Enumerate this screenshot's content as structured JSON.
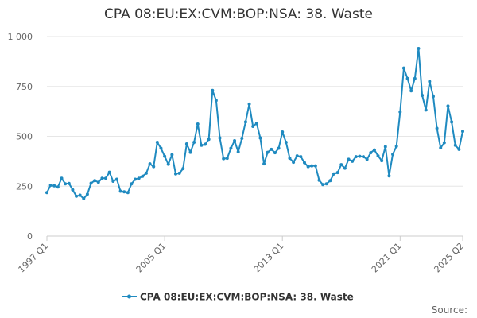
{
  "chart_data": {
    "type": "line",
    "title": "CPA 08:EU:EX:CVM:BOP:NSA: 38. Waste",
    "xlabel": "",
    "ylabel": "",
    "ylim": [
      0,
      1000
    ],
    "y_ticks": [
      0,
      250,
      500,
      750,
      1000
    ],
    "y_tick_labels": [
      "0",
      "250",
      "500",
      "750",
      "1 000"
    ],
    "x_tick_labels": [
      "1997 Q1",
      "2005 Q1",
      "2013 Q1",
      "2021 Q1",
      "2025 Q2"
    ],
    "grid": true,
    "legend_position": "bottom",
    "color": "#1f8ac0",
    "series": [
      {
        "name": "CPA 08:EU:EX:CVM:BOP:NSA: 38. Waste",
        "x": [
          "1997 Q1",
          "1997 Q2",
          "1997 Q3",
          "1997 Q4",
          "1998 Q1",
          "1998 Q2",
          "1998 Q3",
          "1998 Q4",
          "1999 Q1",
          "1999 Q2",
          "1999 Q3",
          "1999 Q4",
          "2000 Q1",
          "2000 Q2",
          "2000 Q3",
          "2000 Q4",
          "2001 Q1",
          "2001 Q2",
          "2001 Q3",
          "2001 Q4",
          "2002 Q1",
          "2002 Q2",
          "2002 Q3",
          "2002 Q4",
          "2003 Q1",
          "2003 Q2",
          "2003 Q3",
          "2003 Q4",
          "2004 Q1",
          "2004 Q2",
          "2004 Q3",
          "2004 Q4",
          "2005 Q1",
          "2005 Q2",
          "2005 Q3",
          "2005 Q4",
          "2006 Q1",
          "2006 Q2",
          "2006 Q3",
          "2006 Q4",
          "2007 Q1",
          "2007 Q2",
          "2007 Q3",
          "2007 Q4",
          "2008 Q1",
          "2008 Q2",
          "2008 Q3",
          "2008 Q4",
          "2009 Q1",
          "2009 Q2",
          "2009 Q3",
          "2009 Q4",
          "2010 Q1",
          "2010 Q2",
          "2010 Q3",
          "2010 Q4",
          "2011 Q1",
          "2011 Q2",
          "2011 Q3",
          "2011 Q4",
          "2012 Q1",
          "2012 Q2",
          "2012 Q3",
          "2012 Q4",
          "2013 Q1",
          "2013 Q2",
          "2013 Q3",
          "2013 Q4",
          "2014 Q1",
          "2014 Q2",
          "2014 Q3",
          "2014 Q4",
          "2015 Q1",
          "2015 Q2",
          "2015 Q3",
          "2015 Q4",
          "2016 Q1",
          "2016 Q2",
          "2016 Q3",
          "2016 Q4",
          "2017 Q1",
          "2017 Q2",
          "2017 Q3",
          "2017 Q4",
          "2018 Q1",
          "2018 Q2",
          "2018 Q3",
          "2018 Q4",
          "2019 Q1",
          "2019 Q2",
          "2019 Q3",
          "2019 Q4",
          "2020 Q1",
          "2020 Q2",
          "2020 Q3",
          "2020 Q4",
          "2021 Q1",
          "2021 Q2",
          "2021 Q3",
          "2021 Q4",
          "2022 Q1",
          "2022 Q2",
          "2022 Q3",
          "2022 Q4",
          "2023 Q1",
          "2023 Q2",
          "2023 Q3",
          "2023 Q4",
          "2024 Q1",
          "2024 Q2",
          "2024 Q3",
          "2024 Q4",
          "2025 Q1",
          "2025 Q2"
        ],
        "values": [
          218,
          255,
          252,
          246,
          290,
          262,
          264,
          232,
          200,
          205,
          188,
          210,
          265,
          278,
          270,
          290,
          290,
          320,
          275,
          285,
          225,
          222,
          218,
          262,
          285,
          290,
          300,
          315,
          362,
          348,
          470,
          440,
          400,
          360,
          408,
          312,
          315,
          338,
          462,
          420,
          470,
          562,
          455,
          460,
          485,
          730,
          680,
          492,
          388,
          390,
          440,
          478,
          422,
          490,
          572,
          662,
          550,
          565,
          492,
          362,
          420,
          435,
          418,
          440,
          522,
          470,
          390,
          370,
          402,
          398,
          368,
          348,
          352,
          352,
          280,
          258,
          262,
          278,
          312,
          318,
          358,
          340,
          385,
          375,
          398,
          400,
          398,
          385,
          418,
          432,
          402,
          378,
          448,
          302,
          410,
          450,
          622,
          842,
          790,
          728,
          790,
          940,
          705,
          632,
          775,
          700,
          540,
          442,
          468,
          652,
          572,
          455,
          435,
          525
        ]
      }
    ]
  },
  "legend": {
    "label": "CPA 08:EU:EX:CVM:BOP:NSA: 38. Waste"
  },
  "footer": {
    "source_label": "Source:"
  }
}
